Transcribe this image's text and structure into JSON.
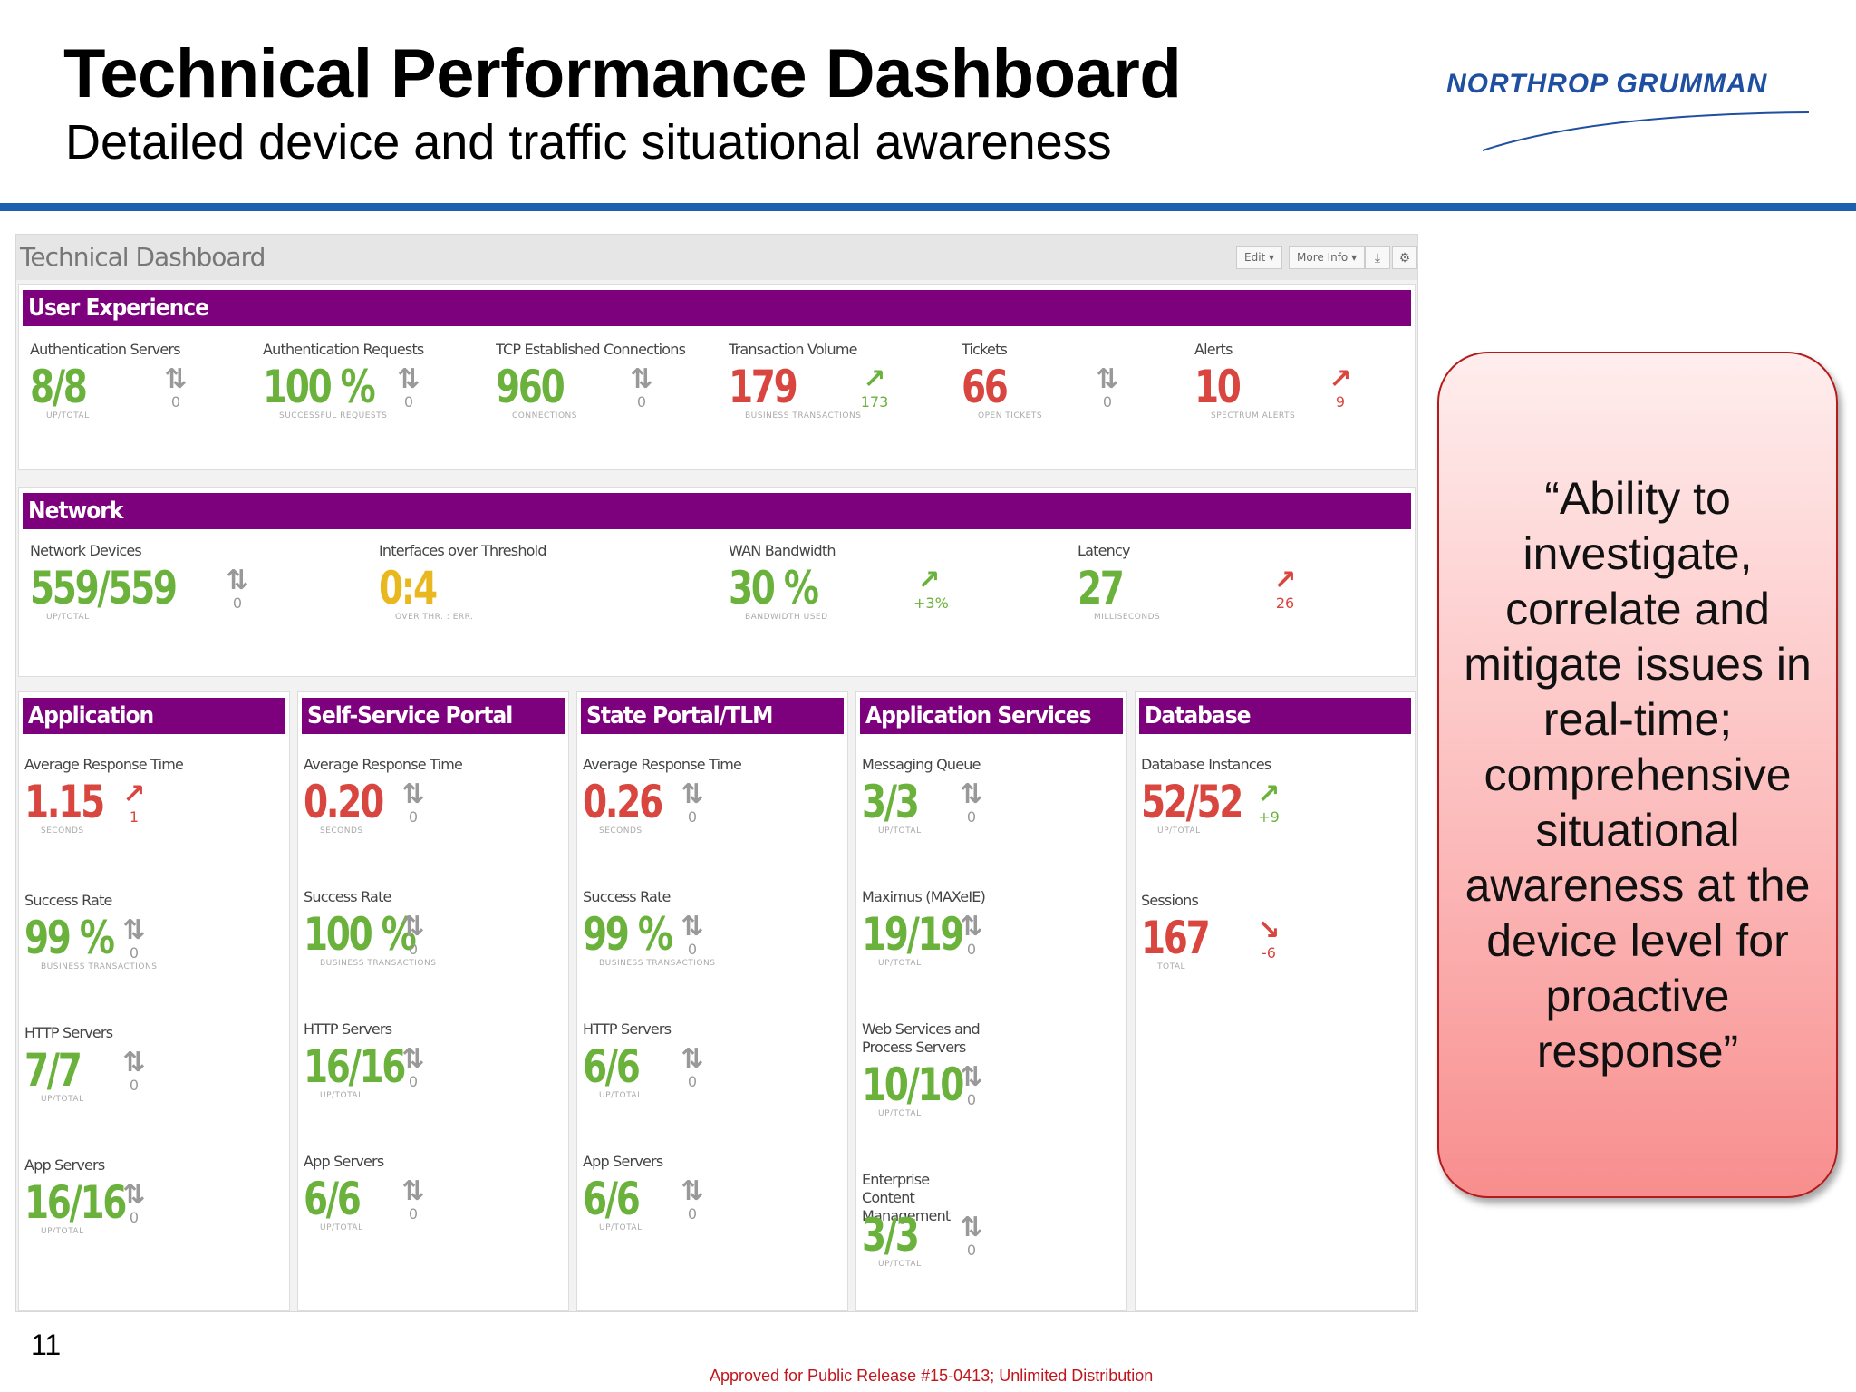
{
  "slide": {
    "title": "Technical Performance Dashboard",
    "subtitle": "Detailed device and traffic situational awareness",
    "logo_text": "NORTHROP GRUMMAN",
    "page_number": "11",
    "release_note": "Approved for Public Release #15-0413; Unlimited Distribution"
  },
  "dashboard": {
    "title": "Technical Dashboard",
    "buttons": {
      "edit": "Edit ▾",
      "more_info": "More Info ▾",
      "download": "⤓",
      "settings": "⚙"
    }
  },
  "colors": {
    "header_purple": "#7d007d",
    "good": "#6ab23c",
    "bad": "#d9463f",
    "warn": "#e8b81e",
    "rule_blue": "#1f5fb0"
  },
  "panels": {
    "user_experience": {
      "title": "User Experience",
      "metrics": [
        {
          "label": "Authentication Servers",
          "value": "8/8",
          "sub": "UP/TOTAL",
          "trend": "neutral",
          "delta": "0"
        },
        {
          "label": "Authentication Requests",
          "value": "100 %",
          "sub": "SUCCESSFUL REQUESTS",
          "trend": "neutral",
          "delta": "0"
        },
        {
          "label": "TCP Established Connections",
          "value": "960",
          "sub": "CONNECTIONS",
          "trend": "neutral",
          "delta": "0"
        },
        {
          "label": "Transaction Volume",
          "value": "179",
          "sub": "BUSINESS TRANSACTIONS",
          "trend": "up",
          "delta": "173"
        },
        {
          "label": "Tickets",
          "value": "66",
          "sub": "OPEN TICKETS",
          "trend": "neutral",
          "delta": "0"
        },
        {
          "label": "Alerts",
          "value": "10",
          "sub": "SPECTRUM ALERTS",
          "trend": "up",
          "delta": "9"
        }
      ]
    },
    "network": {
      "title": "Network",
      "metrics": [
        {
          "label": "Network Devices",
          "value": "559/559",
          "sub": "UP/TOTAL",
          "trend": "neutral",
          "delta": "0"
        },
        {
          "label": "Interfaces over Threshold",
          "value": "0:4",
          "sub": "OVER THR. : ERR.",
          "trend": "none",
          "delta": ""
        },
        {
          "label": "WAN Bandwidth",
          "value": "30 %",
          "sub": "BANDWIDTH USED",
          "trend": "up",
          "delta": "+3%"
        },
        {
          "label": "Latency",
          "value": "27",
          "sub": "MILLISECONDS",
          "trend": "up",
          "delta": "26"
        }
      ]
    },
    "application": {
      "title": "Application",
      "metrics": [
        {
          "label": "Average Response Time",
          "value": "1.15",
          "sub": "SECONDS",
          "trend": "up",
          "delta": "1"
        },
        {
          "label": "Success Rate",
          "value": "99 %",
          "sub": "BUSINESS TRANSACTIONS",
          "trend": "neutral",
          "delta": "0"
        },
        {
          "label": "HTTP Servers",
          "value": "7/7",
          "sub": "UP/TOTAL",
          "trend": "neutral",
          "delta": "0"
        },
        {
          "label": "App Servers",
          "value": "16/16",
          "sub": "UP/TOTAL",
          "trend": "neutral",
          "delta": "0"
        }
      ]
    },
    "self_service": {
      "title": "Self-Service Portal",
      "metrics": [
        {
          "label": "Average Response Time",
          "value": "0.20",
          "sub": "SECONDS",
          "trend": "neutral",
          "delta": "0"
        },
        {
          "label": "Success Rate",
          "value": "100 %",
          "sub": "BUSINESS TRANSACTIONS",
          "trend": "neutral",
          "delta": "0"
        },
        {
          "label": "HTTP Servers",
          "value": "16/16",
          "sub": "UP/TOTAL",
          "trend": "neutral",
          "delta": "0"
        },
        {
          "label": "App Servers",
          "value": "6/6",
          "sub": "UP/TOTAL",
          "trend": "neutral",
          "delta": "0"
        }
      ]
    },
    "state_portal": {
      "title": "State Portal/TLM",
      "metrics": [
        {
          "label": "Average Response Time",
          "value": "0.26",
          "sub": "SECONDS",
          "trend": "neutral",
          "delta": "0"
        },
        {
          "label": "Success Rate",
          "value": "99 %",
          "sub": "BUSINESS TRANSACTIONS",
          "trend": "neutral",
          "delta": "0"
        },
        {
          "label": "HTTP Servers",
          "value": "6/6",
          "sub": "UP/TOTAL",
          "trend": "neutral",
          "delta": "0"
        },
        {
          "label": "App Servers",
          "value": "6/6",
          "sub": "UP/TOTAL",
          "trend": "neutral",
          "delta": "0"
        }
      ]
    },
    "app_services": {
      "title": "Application Services",
      "metrics": [
        {
          "label": "Messaging Queue",
          "value": "3/3",
          "sub": "UP/TOTAL",
          "trend": "neutral",
          "delta": "0"
        },
        {
          "label": "Maximus (MAXeIE)",
          "value": "19/19",
          "sub": "UP/TOTAL",
          "trend": "neutral",
          "delta": "0"
        },
        {
          "label": "Web Services and Process Servers",
          "value": "10/10",
          "sub": "UP/TOTAL",
          "trend": "neutral",
          "delta": "0"
        },
        {
          "label": "Enterprise Content Management",
          "value": "3/3",
          "sub": "UP/TOTAL",
          "trend": "neutral",
          "delta": "0"
        }
      ]
    },
    "database": {
      "title": "Database",
      "metrics": [
        {
          "label": "Database Instances",
          "value": "52/52",
          "sub": "UP/TOTAL",
          "trend": "up-good",
          "delta": "+9"
        },
        {
          "label": "Sessions",
          "value": "167",
          "sub": "TOTAL",
          "trend": "down",
          "delta": "-6"
        }
      ]
    }
  },
  "callout": {
    "text": "“Ability to investigate, correlate and mitigate issues in real-time; comprehensive situational awareness at the device level for proactive response”"
  }
}
